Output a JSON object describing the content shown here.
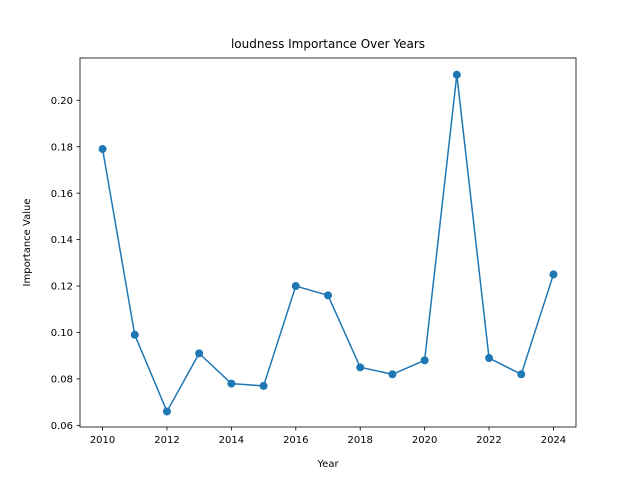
{
  "chart_data": {
    "type": "line",
    "title": "loudness Importance Over Years",
    "xlabel": "Year",
    "ylabel": "Importance Value",
    "x": [
      2010,
      2011,
      2012,
      2013,
      2014,
      2015,
      2016,
      2017,
      2018,
      2019,
      2020,
      2021,
      2022,
      2023,
      2024
    ],
    "series": [
      {
        "values": [
          0.179,
          0.099,
          0.066,
          0.091,
          0.078,
          0.077,
          0.12,
          0.116,
          0.085,
          0.082,
          0.088,
          0.211,
          0.089,
          0.082,
          0.125
        ],
        "color": "#1f77b4",
        "marker": "circle"
      }
    ],
    "xlim": [
      2009.3,
      2024.7
    ],
    "ylim": [
      0.0593,
      0.2182
    ],
    "xticks": [
      "2010",
      "2012",
      "2014",
      "2016",
      "2018",
      "2020",
      "2022",
      "2024"
    ],
    "yticks": [
      "0.06",
      "0.08",
      "0.10",
      "0.12",
      "0.14",
      "0.16",
      "0.18",
      "0.20"
    ],
    "grid": false,
    "legend": "none"
  }
}
